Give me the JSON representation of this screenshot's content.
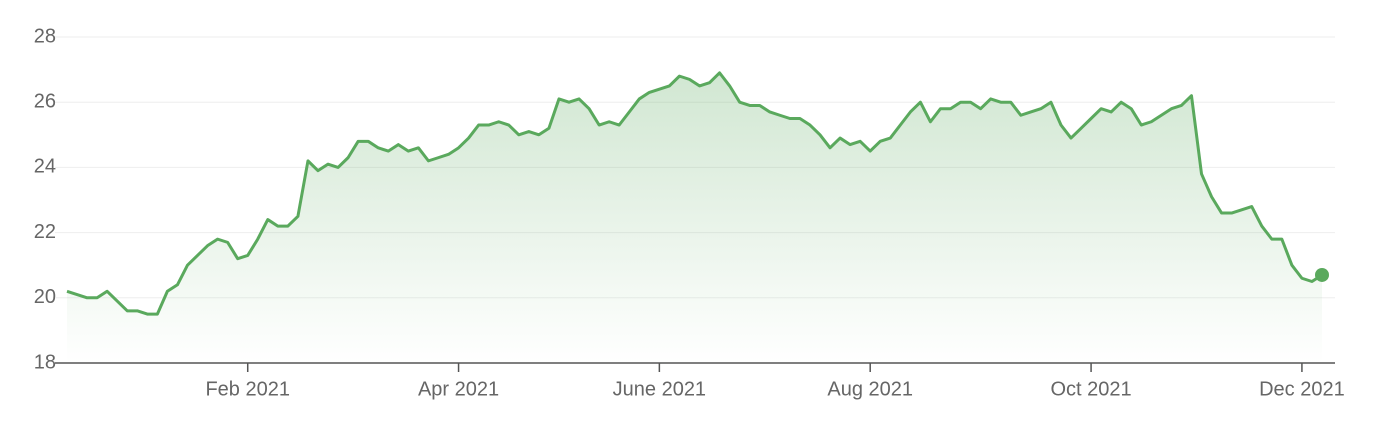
{
  "chart_data": {
    "type": "line",
    "categories": [
      null,
      null,
      null,
      null,
      null,
      null,
      null,
      null,
      null,
      null,
      null,
      null,
      null,
      null,
      null,
      null,
      null,
      null,
      "Feb 2021",
      null,
      null,
      null,
      null,
      null,
      null,
      null,
      null,
      null,
      null,
      null,
      null,
      null,
      null,
      null,
      null,
      null,
      null,
      null,
      null,
      "Apr 2021",
      null,
      null,
      null,
      null,
      null,
      null,
      null,
      null,
      null,
      null,
      null,
      null,
      null,
      null,
      null,
      null,
      null,
      null,
      null,
      "June 2021",
      null,
      null,
      null,
      null,
      null,
      null,
      null,
      null,
      null,
      null,
      null,
      null,
      null,
      null,
      null,
      null,
      null,
      null,
      null,
      null,
      "Aug 2021",
      null,
      null,
      null,
      null,
      null,
      null,
      null,
      null,
      null,
      null,
      null,
      null,
      null,
      null,
      null,
      null,
      null,
      null,
      null,
      null,
      null,
      "Oct 2021",
      null,
      null,
      null,
      null,
      null,
      null,
      null,
      null,
      null,
      null,
      null,
      null,
      null,
      null,
      null,
      null,
      null,
      null,
      null,
      null,
      "Dec 2021",
      null,
      null
    ],
    "values": [
      20.2,
      20.1,
      20.0,
      20.0,
      20.2,
      19.9,
      19.6,
      19.6,
      19.5,
      19.5,
      20.2,
      20.4,
      21.0,
      21.3,
      21.6,
      21.8,
      21.7,
      21.2,
      21.3,
      21.8,
      22.4,
      22.2,
      22.2,
      22.5,
      24.2,
      23.9,
      24.1,
      24.0,
      24.3,
      24.8,
      24.8,
      24.6,
      24.5,
      24.7,
      24.5,
      24.6,
      24.2,
      24.3,
      24.4,
      24.6,
      24.9,
      25.3,
      25.3,
      25.4,
      25.3,
      25.0,
      25.1,
      25.0,
      25.2,
      26.1,
      26.0,
      26.1,
      25.8,
      25.3,
      25.4,
      25.3,
      25.7,
      26.1,
      26.3,
      26.4,
      26.5,
      26.8,
      26.7,
      26.5,
      26.6,
      26.9,
      26.5,
      26.0,
      25.9,
      25.9,
      25.7,
      25.6,
      25.5,
      25.5,
      25.3,
      25.0,
      24.6,
      24.9,
      24.7,
      24.8,
      24.5,
      24.8,
      24.9,
      25.3,
      25.7,
      26.0,
      25.4,
      25.8,
      25.8,
      26.0,
      26.0,
      25.8,
      26.1,
      26.0,
      26.0,
      25.6,
      25.7,
      25.8,
      26.0,
      25.3,
      24.9,
      25.2,
      25.5,
      25.8,
      25.7,
      26.0,
      25.8,
      25.3,
      25.4,
      25.6,
      25.8,
      25.9,
      26.2,
      23.8,
      23.1,
      22.6,
      22.6,
      22.7,
      22.8,
      22.2,
      21.8,
      21.8,
      21.0,
      20.6,
      20.5,
      20.7
    ],
    "color": "#5aa95d",
    "ylim": [
      18,
      28
    ],
    "yticks": [
      18,
      20,
      22,
      24,
      26,
      28
    ],
    "grid": true
  }
}
